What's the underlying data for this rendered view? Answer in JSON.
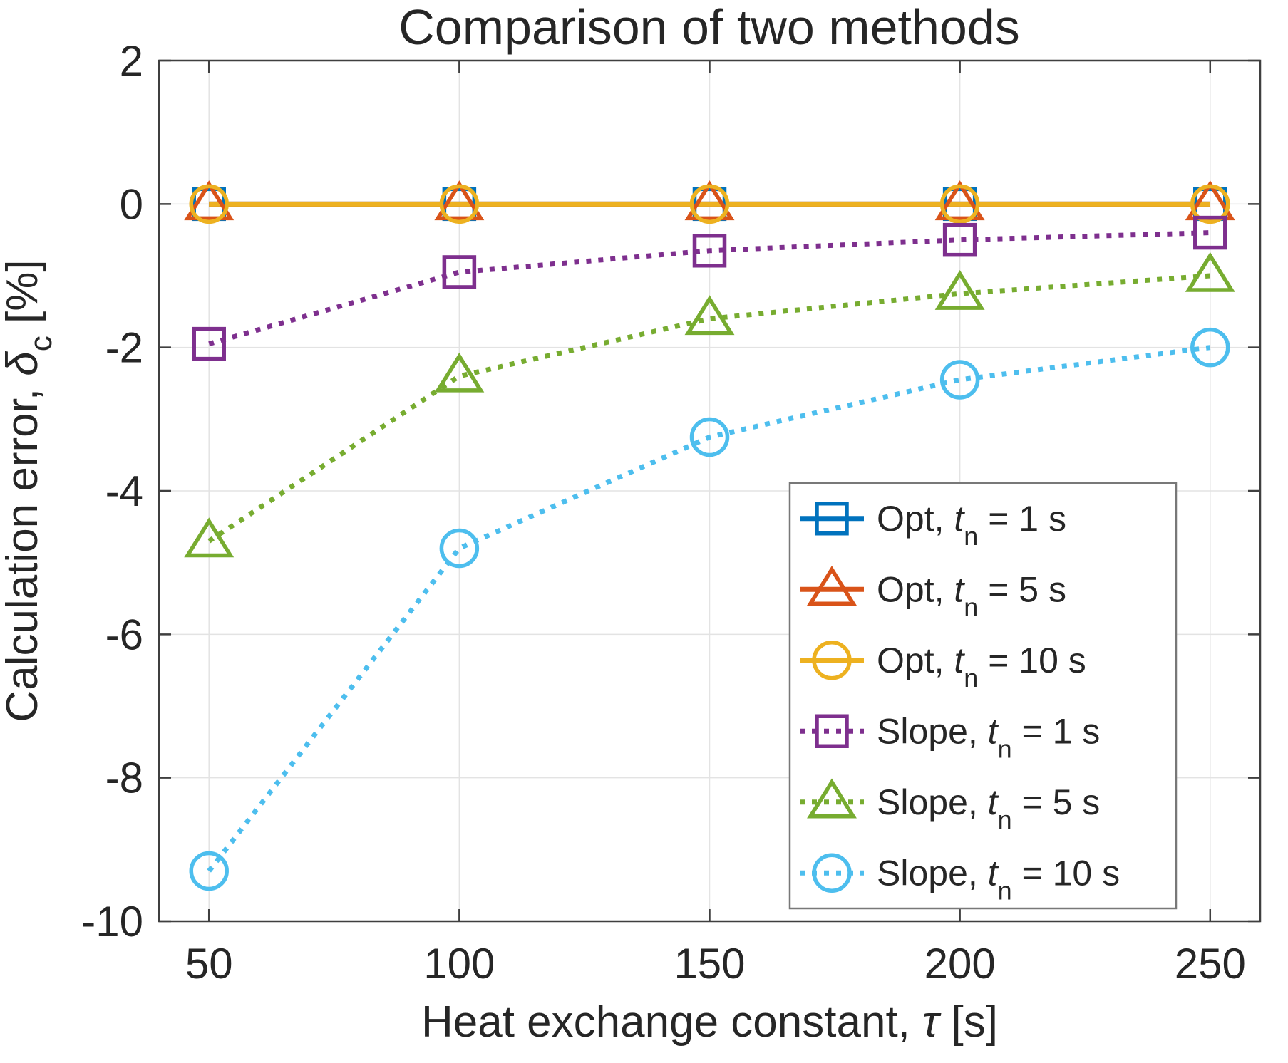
{
  "title": "Comparison of two methods",
  "axes": {
    "x": {
      "label": {
        "prefix": "Heat exchange constant, ",
        "symbol": "τ",
        "rest": " [s]"
      }
    },
    "y": {
      "label": {
        "prefix": "Calculation error, ",
        "symbol": "δ",
        "sub": "c",
        "rest": " [%]"
      }
    }
  },
  "colors": {
    "text": "#262626",
    "grid": "#E3E3E3",
    "frame": "#3F3F3F",
    "legend_border": "#787878",
    "background": "#FFFFFF"
  },
  "chart_data": {
    "type": "line",
    "title": "Comparison of two methods",
    "xlabel": "Heat exchange constant, τ [s]",
    "ylabel": "Calculation error, δ_c [%]",
    "x": [
      50,
      100,
      150,
      200,
      250
    ],
    "x_ticks": [
      50,
      100,
      150,
      200,
      250
    ],
    "y_ticks": [
      2,
      0,
      -2,
      -4,
      -6,
      -8,
      -10
    ],
    "xlim": [
      40,
      260
    ],
    "ylim": [
      -10,
      2
    ],
    "grid": true,
    "legend_position": "lower-right-inside",
    "series": [
      {
        "id": "opt-1s",
        "name": "Opt, t_n = 1 s",
        "label": {
          "prefix": "Opt, ",
          "symbol": "t",
          "sub": "n",
          "rest": " = 1 s"
        },
        "values": [
          0,
          0,
          0,
          0,
          0
        ],
        "color": "#0072BD",
        "line_style": "solid",
        "marker": "square"
      },
      {
        "id": "opt-5s",
        "name": "Opt, t_n = 5 s",
        "label": {
          "prefix": "Opt, ",
          "symbol": "t",
          "sub": "n",
          "rest": " = 5 s"
        },
        "values": [
          0,
          0,
          0,
          0,
          0
        ],
        "color": "#D95319",
        "line_style": "solid",
        "marker": "triangle"
      },
      {
        "id": "opt-10s",
        "name": "Opt, t_n = 10 s",
        "label": {
          "prefix": "Opt, ",
          "symbol": "t",
          "sub": "n",
          "rest": " = 10 s"
        },
        "values": [
          0,
          0,
          0,
          0,
          0
        ],
        "color": "#EDB120",
        "line_style": "solid",
        "marker": "circle"
      },
      {
        "id": "slope-1s",
        "name": "Slope, t_n = 1 s",
        "label": {
          "prefix": "Slope, ",
          "symbol": "t",
          "sub": "n",
          "rest": " = 1 s"
        },
        "values": [
          -1.95,
          -0.95,
          -0.65,
          -0.5,
          -0.4
        ],
        "color": "#7E2F8E",
        "line_style": "dotted",
        "marker": "square"
      },
      {
        "id": "slope-5s",
        "name": "Slope, t_n = 5 s",
        "label": {
          "prefix": "Slope, ",
          "symbol": "t",
          "sub": "n",
          "rest": " = 5 s"
        },
        "values": [
          -4.7,
          -2.4,
          -1.6,
          -1.25,
          -1.0
        ],
        "color": "#77AC30",
        "line_style": "dotted",
        "marker": "triangle"
      },
      {
        "id": "slope-10s",
        "name": "Slope, t_n = 10 s",
        "label": {
          "prefix": "Slope, ",
          "symbol": "t",
          "sub": "n",
          "rest": " = 10 s"
        },
        "values": [
          -9.3,
          -4.8,
          -3.25,
          -2.45,
          -2.0
        ],
        "color": "#4DBEEE",
        "line_style": "dotted",
        "marker": "circle"
      }
    ]
  }
}
